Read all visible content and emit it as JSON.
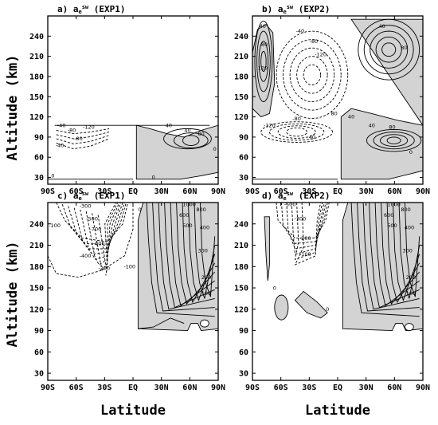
{
  "ylabel": "Altitude (km)",
  "xlabel": "Latitude",
  "chart_data": [
    {
      "type": "heatmap",
      "panel": "a",
      "title_prefix": "a) a",
      "title_sub": "e",
      "title_sup": "sw",
      "title_suffix": " (EXP1)",
      "x_ticks": [
        "90S",
        "60S",
        "30S",
        "EQ",
        "30N",
        "60N",
        "90N"
      ],
      "y_ticks": [
        "30",
        "60",
        "90",
        "120",
        "150",
        "180",
        "210",
        "240"
      ],
      "xlim": [
        -90,
        90
      ],
      "ylim": [
        20,
        270
      ],
      "contour_labels": [
        "-40",
        "-80",
        "-120",
        "-80",
        "-40",
        "40",
        "40",
        "80",
        "0",
        "0",
        "0"
      ],
      "shaded": "positive values"
    },
    {
      "type": "heatmap",
      "panel": "b",
      "title_prefix": "b) a",
      "title_sub": "e",
      "title_sup": "sw",
      "title_suffix": " (EXP2)",
      "x_ticks": [
        "90S",
        "60S",
        "30S",
        "EQ",
        "30N",
        "60N",
        "90N"
      ],
      "y_ticks": [
        "30",
        "60",
        "90",
        "120",
        "150",
        "180",
        "210",
        "240"
      ],
      "xlim": [
        -90,
        90
      ],
      "ylim": [
        20,
        270
      ],
      "contour_labels": [
        "40",
        "80",
        "120",
        "-40",
        "-80",
        "-120",
        "-80",
        "-120",
        "40",
        "80",
        "40",
        "40",
        "80",
        "40",
        "80",
        "0"
      ],
      "shaded": "positive values"
    },
    {
      "type": "heatmap",
      "panel": "c",
      "title_prefix": "c) a",
      "title_sub": "e",
      "title_sup": "sw",
      "title_suffix": " (EXP1)",
      "x_ticks": [
        "90S",
        "60S",
        "30S",
        "EQ",
        "30N",
        "60N",
        "90N"
      ],
      "y_ticks": [
        "30",
        "60",
        "90",
        "120",
        "150",
        "180",
        "210",
        "240"
      ],
      "xlim": [
        -90,
        90
      ],
      "ylim": [
        20,
        270
      ],
      "contour_labels": [
        "-100",
        "-300",
        "-500",
        "-700",
        "-600",
        "-400",
        "-200",
        "-100",
        "1000",
        "800",
        "600",
        "500",
        "400",
        "300",
        "200",
        "100",
        "0"
      ],
      "shaded": "positive values"
    },
    {
      "type": "heatmap",
      "panel": "d",
      "title_prefix": "d) a",
      "title_sub": "e",
      "title_sup": "sw",
      "title_suffix": " (EXP2)",
      "x_ticks": [
        "90S",
        "60S",
        "30S",
        "EQ",
        "30N",
        "60N",
        "90N"
      ],
      "y_ticks": [
        "30",
        "60",
        "90",
        "120",
        "150",
        "180",
        "210",
        "240"
      ],
      "xlim": [
        -90,
        90
      ],
      "ylim": [
        20,
        270
      ],
      "contour_labels": [
        "-500",
        "-300",
        "-200",
        "-100",
        "1000",
        "800",
        "600",
        "500",
        "400",
        "300",
        "200",
        "100",
        "0",
        "0"
      ],
      "shaded": "positive values"
    }
  ]
}
